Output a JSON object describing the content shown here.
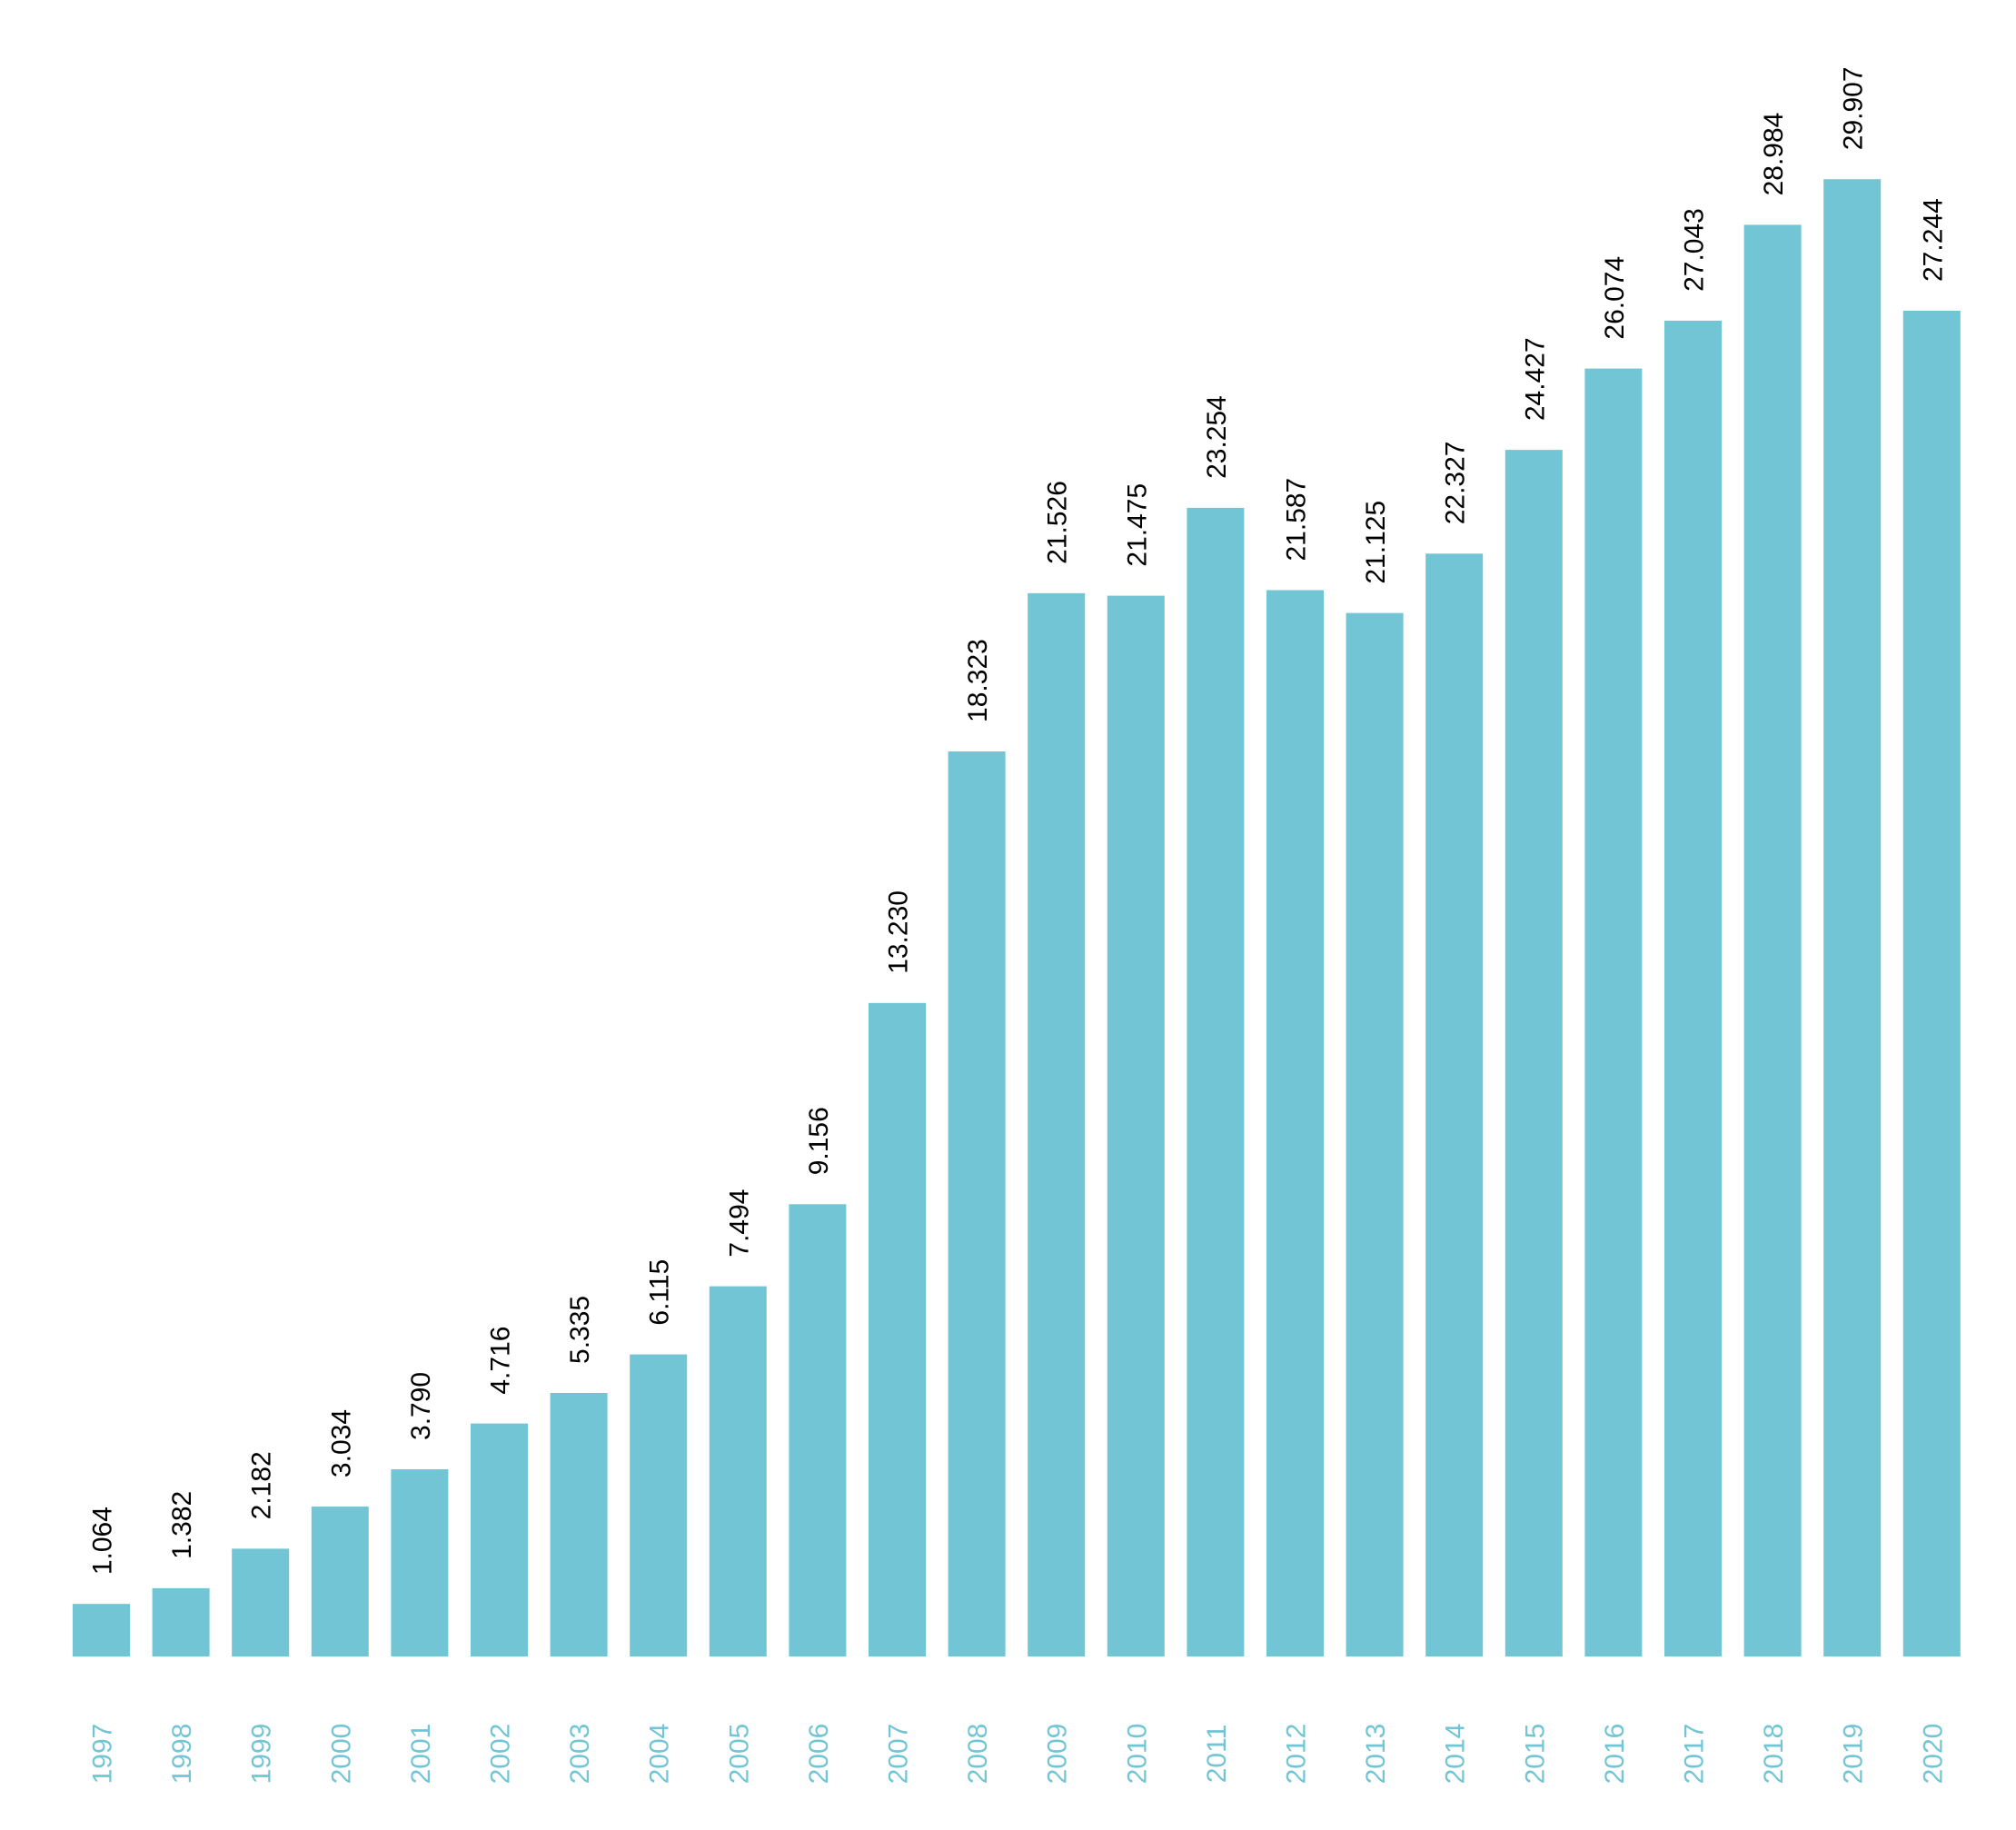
{
  "chart_data": {
    "type": "bar",
    "title": "",
    "xlabel": "",
    "ylabel": "",
    "ylim": [
      0,
      30.5
    ],
    "grid": false,
    "categories": [
      "1997",
      "1998",
      "1999",
      "2000",
      "2001",
      "2002",
      "2003",
      "2004",
      "2005",
      "2006",
      "2007",
      "2008",
      "2009",
      "2010",
      "2011",
      "2012",
      "2013",
      "2014",
      "2015",
      "2016",
      "2017",
      "2018",
      "2019",
      "2020"
    ],
    "values": [
      1.064,
      1.382,
      2.182,
      3.034,
      3.79,
      4.716,
      5.335,
      6.115,
      7.494,
      9.156,
      13.23,
      18.323,
      21.526,
      21.475,
      23.254,
      21.587,
      21.125,
      22.327,
      24.427,
      26.074,
      27.043,
      28.984,
      29.907,
      27.244
    ],
    "value_labels": [
      "1.064",
      "1.382",
      "2.182",
      "3.034",
      "3.790",
      "4.716",
      "5.335",
      "6.115",
      "7.494",
      "9.156",
      "13.230",
      "18.323",
      "21.526",
      "21.475",
      "23.254",
      "21.587",
      "21.125",
      "22.327",
      "24.427",
      "26.074",
      "27.043",
      "28.984",
      "29.907",
      "27.244"
    ]
  },
  "colors": {
    "bar": "#72c5d5",
    "tick_label": "#72c5d5",
    "value_label": "#000000",
    "background": "#ffffff"
  }
}
